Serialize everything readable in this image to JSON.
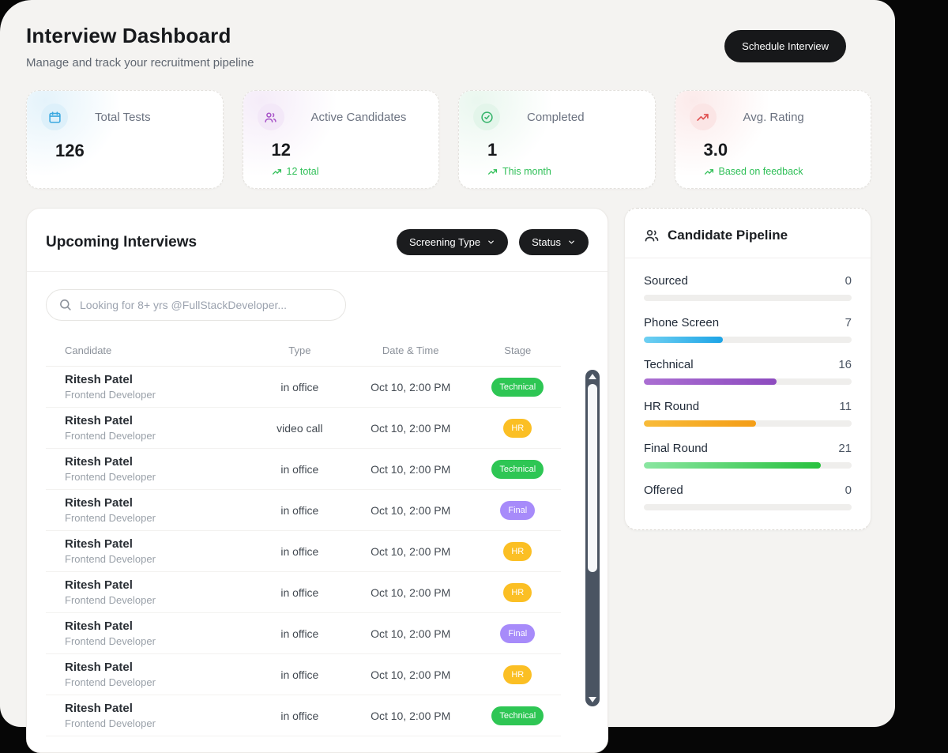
{
  "header": {
    "title": "Interview Dashboard",
    "subtitle": "Manage and track your recruitment pipeline",
    "schedule_button": "Schedule Interview"
  },
  "stats": [
    {
      "label": "Total Tests",
      "value": "126",
      "sub": "",
      "icon": "calendar-icon",
      "tint": "#cfe9f7",
      "icon_bg": "#ddf0fa",
      "icon_color": "#3aa8e0"
    },
    {
      "label": "Active Candidates",
      "value": "12",
      "sub": "12 total",
      "icon": "users-icon",
      "tint": "#ecdcf3",
      "icon_bg": "#f3e8f8",
      "icon_color": "#a855c8"
    },
    {
      "label": "Completed",
      "value": "1",
      "sub": "This month",
      "icon": "check-circle-icon",
      "tint": "#d8f0e1",
      "icon_bg": "#e3f5ea",
      "icon_color": "#34b369"
    },
    {
      "label": "Avg. Rating",
      "value": "3.0",
      "sub": "Based on feedback",
      "icon": "trending-up-icon",
      "tint": "#f8d9d9",
      "icon_bg": "#fbe5e5",
      "icon_color": "#e05252"
    }
  ],
  "stat_sub_color": "#2fbf57",
  "interviews": {
    "title": "Upcoming Interviews",
    "filters": [
      {
        "label": "Screening Type"
      },
      {
        "label": "Status"
      }
    ],
    "search_placeholder": "Looking for 8+ yrs @FullStackDeveloper...",
    "columns": [
      "Candidate",
      "Type",
      "Date & Time",
      "Stage"
    ],
    "rows": [
      {
        "name": "Ritesh Patel",
        "role": "Frontend Developer",
        "type": "in office",
        "datetime": "Oct 10, 2:00 PM",
        "stage": "Technical"
      },
      {
        "name": "Ritesh Patel",
        "role": "Frontend Developer",
        "type": "video call",
        "datetime": "Oct 10, 2:00 PM",
        "stage": "HR"
      },
      {
        "name": "Ritesh Patel",
        "role": "Frontend Developer",
        "type": "in office",
        "datetime": "Oct 10, 2:00 PM",
        "stage": "Technical"
      },
      {
        "name": "Ritesh Patel",
        "role": "Frontend Developer",
        "type": "in office",
        "datetime": "Oct 10, 2:00 PM",
        "stage": "Final"
      },
      {
        "name": "Ritesh Patel",
        "role": "Frontend Developer",
        "type": "in office",
        "datetime": "Oct 10, 2:00 PM",
        "stage": "HR"
      },
      {
        "name": "Ritesh Patel",
        "role": "Frontend Developer",
        "type": "in office",
        "datetime": "Oct 10, 2:00 PM",
        "stage": "HR"
      },
      {
        "name": "Ritesh Patel",
        "role": "Frontend Developer",
        "type": "in office",
        "datetime": "Oct 10, 2:00 PM",
        "stage": "Final"
      },
      {
        "name": "Ritesh Patel",
        "role": "Frontend Developer",
        "type": "in office",
        "datetime": "Oct 10, 2:00 PM",
        "stage": "HR"
      },
      {
        "name": "Ritesh Patel",
        "role": "Frontend Developer",
        "type": "in office",
        "datetime": "Oct 10, 2:00 PM",
        "stage": "Technical"
      }
    ],
    "stage_colors": {
      "Technical": "#2ec654",
      "HR": "#fbbf24",
      "Final": "#a78bfa"
    }
  },
  "pipeline": {
    "title": "Candidate Pipeline",
    "stages": [
      {
        "label": "Sourced",
        "value": 0,
        "pct": 0,
        "from": "#efeeec",
        "to": "#efeeec"
      },
      {
        "label": "Phone Screen",
        "value": 7,
        "pct": 38,
        "from": "#6fd0f2",
        "to": "#1da4e6"
      },
      {
        "label": "Technical",
        "value": 16,
        "pct": 64,
        "from": "#aa6ed2",
        "to": "#8d4bbf"
      },
      {
        "label": "HR Round",
        "value": 11,
        "pct": 54,
        "from": "#f8bb38",
        "to": "#f49d16"
      },
      {
        "label": "Final Round",
        "value": 21,
        "pct": 85,
        "from": "#8ae6a1",
        "to": "#27c13e"
      },
      {
        "label": "Offered",
        "value": 0,
        "pct": 0,
        "from": "#efeeec",
        "to": "#efeeec"
      }
    ]
  }
}
